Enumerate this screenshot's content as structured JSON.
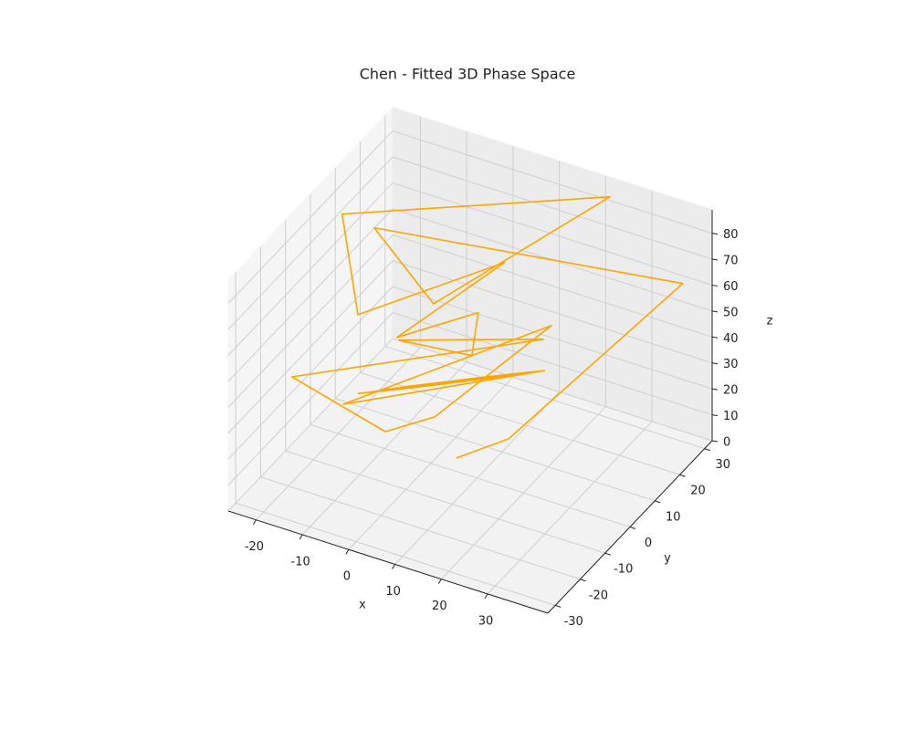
{
  "chart_data": {
    "type": "line3d",
    "title": "Chen - Fitted 3D Phase Space",
    "xlabel": "x",
    "ylabel": "y",
    "zlabel": "z",
    "color": "#ffa500",
    "grid": true,
    "xlim": [
      -26,
      43
    ],
    "ylim": [
      -33,
      33
    ],
    "zlim": [
      0,
      89
    ],
    "xticks": [
      -20,
      -10,
      0,
      10,
      20,
      30
    ],
    "yticks": [
      -30,
      -20,
      -10,
      0,
      10,
      20,
      30
    ],
    "zticks": [
      0,
      10,
      20,
      30,
      40,
      50,
      60,
      70,
      80
    ],
    "x": [
      4.2,
      12.3,
      37.9,
      -13.8,
      -6.3,
      22.4,
      -19.2,
      -17.1,
      5.1,
      -13.2,
      2.5,
      2.1,
      -12.4,
      13.4,
      -22.3,
      -10.5,
      -2.6,
      14.6,
      -15.6,
      13.2,
      12.9,
      9.0,
      2.6,
      -4.6,
      -10.7,
      -14.0,
      -13.7,
      -9.8,
      -3.4,
      3.8,
      9.9,
      11.2,
      10.9,
      7.7,
      2.2,
      -3.9,
      -9.1,
      -12.0,
      -11.7,
      -8.5,
      -3.0,
      3.1,
      8.3,
      13.2
    ],
    "y": [
      2.4,
      8.4,
      30.7,
      2.9,
      12.8,
      30.3,
      0.1,
      2.5,
      20.2,
      10.9,
      14.4,
      12.6,
      10.3,
      20.3,
      -14.3,
      1.2,
      6.3,
      21.3,
      -6.1,
      21.1,
      18.0,
      12.5,
      6.0,
      0.4,
      -3.0,
      -3.1,
      0.0,
      5.6,
      12.0,
      17.7,
      21.0,
      19.3,
      16.6,
      11.9,
      6.4,
      1.6,
      -1.2,
      -1.3,
      1.4,
      6.2,
      11.6,
      16.5,
      19.2,
      21.1
    ],
    "z": [
      2,
      8,
      60,
      80,
      45,
      85,
      85,
      45,
      60,
      30,
      45,
      30,
      30,
      35,
      35,
      5,
      10,
      40,
      20,
      22,
      24.5,
      26.3,
      27,
      26.3,
      24.5,
      22,
      19.5,
      17.7,
      17,
      17.7,
      19.5,
      22,
      24,
      25.5,
      26,
      25.5,
      24,
      22,
      20,
      18.5,
      18,
      18.5,
      20,
      22
    ]
  }
}
